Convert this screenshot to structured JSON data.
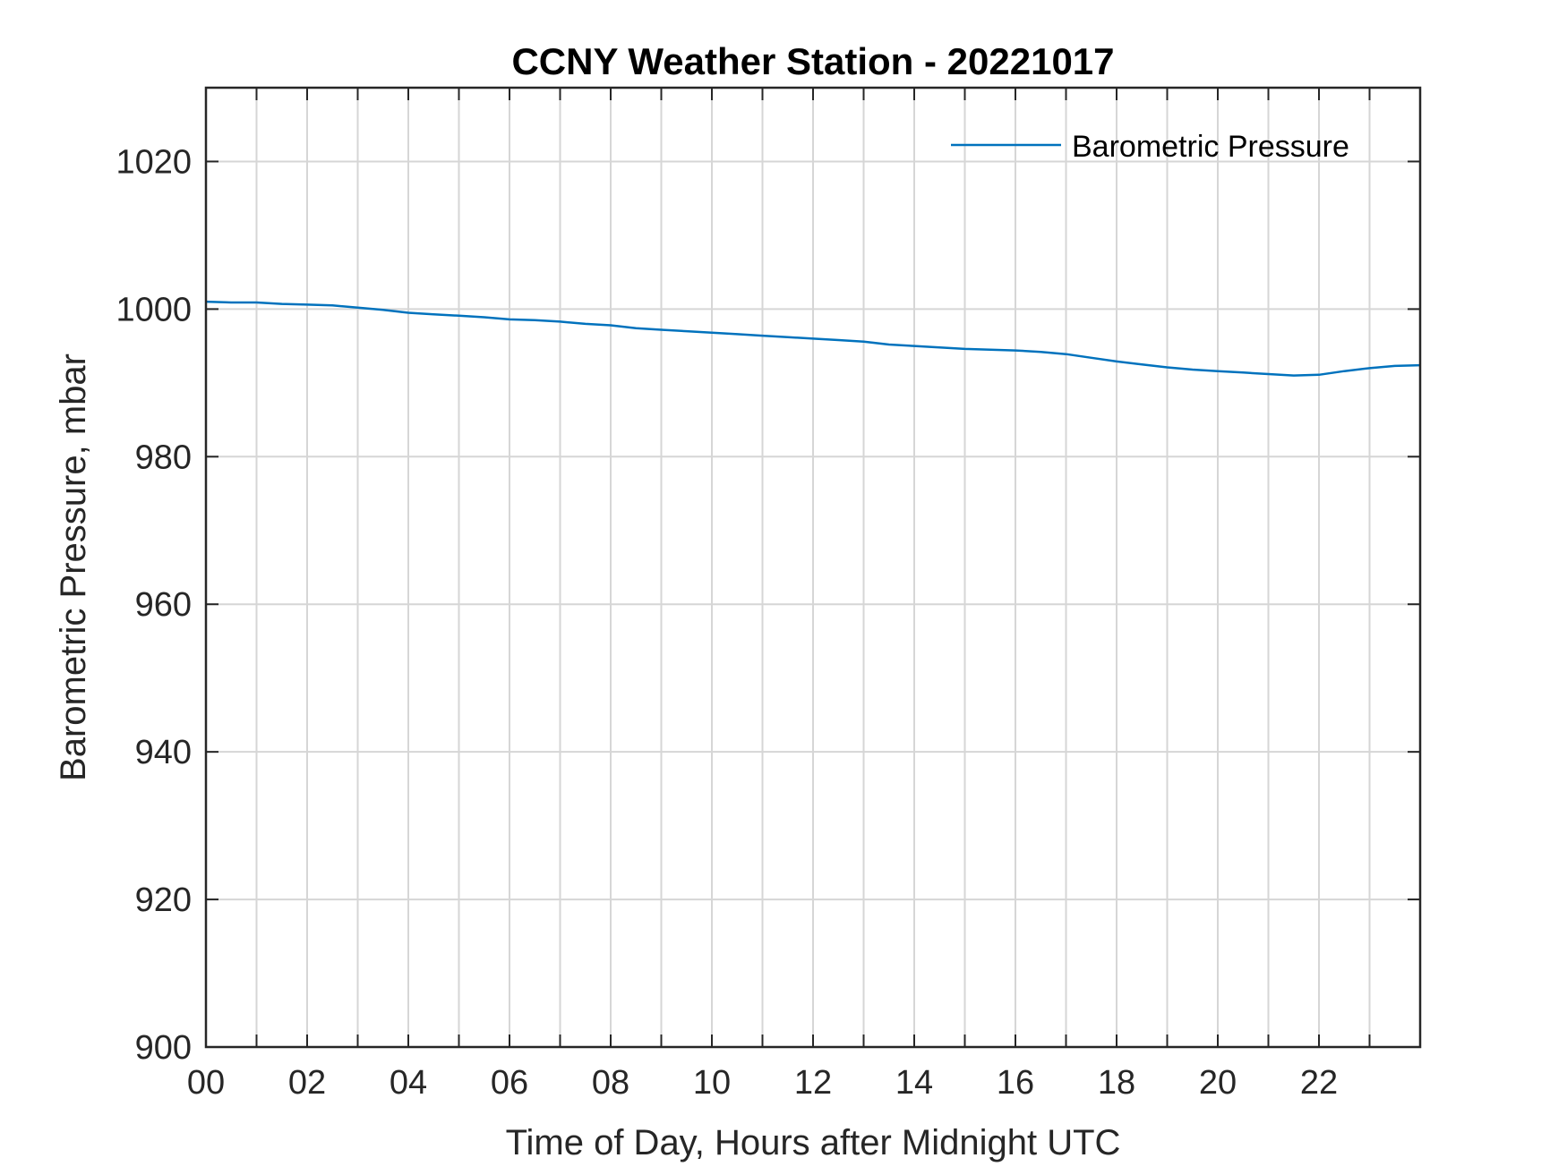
{
  "chart_data": {
    "type": "line",
    "title": "CCNY Weather Station - 20221017",
    "xlabel": "Time of Day, Hours after Midnight UTC",
    "ylabel": "Barometric Pressure, mbar",
    "xlim": [
      0,
      24
    ],
    "ylim": [
      900,
      1030
    ],
    "x_ticks": [
      0,
      2,
      4,
      6,
      8,
      10,
      12,
      14,
      16,
      18,
      20,
      22
    ],
    "x_tick_labels": [
      "00",
      "02",
      "04",
      "06",
      "08",
      "10",
      "12",
      "14",
      "16",
      "18",
      "20",
      "22"
    ],
    "x_minor_grid": [
      1,
      3,
      5,
      7,
      9,
      11,
      13,
      15,
      17,
      19,
      21,
      23
    ],
    "y_ticks": [
      900,
      920,
      940,
      960,
      980,
      1000,
      1020
    ],
    "y_tick_labels": [
      "900",
      "920",
      "940",
      "960",
      "980",
      "1000",
      "1020"
    ],
    "grid": true,
    "legend_position": "top-right",
    "series": [
      {
        "name": "Barometric Pressure",
        "color": "#0072BD",
        "x": [
          0.0,
          0.5,
          1.0,
          1.5,
          2.0,
          2.5,
          3.0,
          3.5,
          4.0,
          4.5,
          5.0,
          5.5,
          6.0,
          6.5,
          7.0,
          7.5,
          8.0,
          8.5,
          9.0,
          9.5,
          10.0,
          10.5,
          11.0,
          11.5,
          12.0,
          12.5,
          13.0,
          13.5,
          14.0,
          14.5,
          15.0,
          15.5,
          16.0,
          16.5,
          17.0,
          17.5,
          18.0,
          18.5,
          19.0,
          19.5,
          20.0,
          20.5,
          21.0,
          21.5,
          22.0,
          22.5,
          23.0,
          23.5,
          24.0
        ],
        "y": [
          1001.0,
          1000.9,
          1000.9,
          1000.7,
          1000.6,
          1000.5,
          1000.2,
          999.9,
          999.5,
          999.3,
          999.1,
          998.9,
          998.6,
          998.5,
          998.3,
          998.0,
          997.8,
          997.4,
          997.2,
          997.0,
          996.8,
          996.6,
          996.4,
          996.2,
          996.0,
          995.8,
          995.6,
          995.2,
          995.0,
          994.8,
          994.6,
          994.5,
          994.4,
          994.2,
          993.9,
          993.4,
          992.9,
          992.5,
          992.1,
          991.8,
          991.6,
          991.4,
          991.2,
          991.0,
          991.1,
          991.6,
          992.0,
          992.3,
          992.4
        ]
      }
    ]
  }
}
